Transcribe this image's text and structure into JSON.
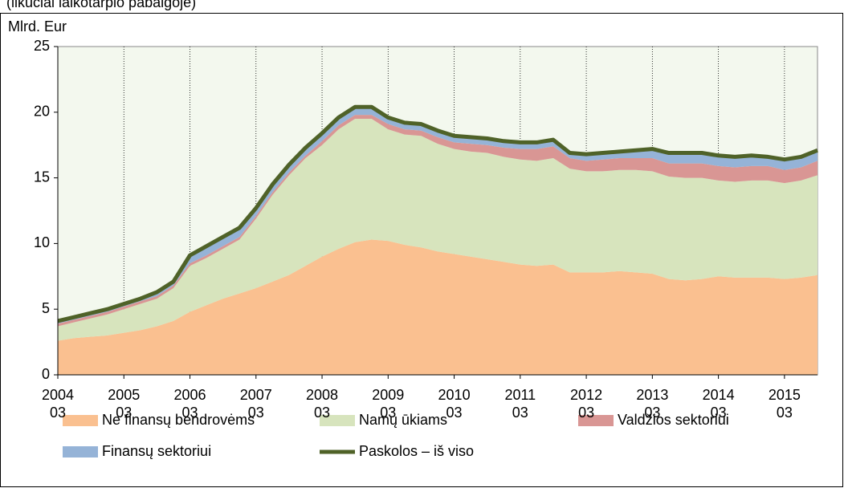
{
  "chart_data": {
    "type": "stacked_area",
    "subtitle": "(likučiai laikotarpio pabaigoje)",
    "ylabel": "Mlrd. Eur",
    "categories": [
      "2004\n03",
      null,
      null,
      null,
      "2005\n03",
      null,
      null,
      null,
      "2006\n03",
      null,
      null,
      null,
      "2007\n03",
      null,
      null,
      null,
      "2008\n03",
      null,
      null,
      null,
      "2009\n03",
      null,
      null,
      null,
      "2010\n03",
      null,
      null,
      null,
      "2011\n03",
      null,
      null,
      null,
      "2012\n03",
      null,
      null,
      null,
      "2013\n03",
      null,
      null,
      null,
      "2014\n03",
      null,
      null,
      null,
      "2015\n03",
      null,
      null
    ],
    "ylim": [
      0,
      25
    ],
    "yticks": [
      0,
      5,
      10,
      15,
      20,
      25
    ],
    "grid": true,
    "series": [
      {
        "name": "Ne finansų bendrovėms",
        "color": "#fac090",
        "values": [
          2.6,
          2.8,
          2.9,
          3.0,
          3.2,
          3.4,
          3.7,
          4.1,
          4.8,
          5.3,
          5.8,
          6.2,
          6.6,
          7.1,
          7.6,
          8.3,
          9.0,
          9.6,
          10.1,
          10.3,
          10.2,
          9.9,
          9.7,
          9.4,
          9.2,
          9.0,
          8.8,
          8.6,
          8.4,
          8.3,
          8.4,
          7.8,
          7.8,
          7.8,
          7.9,
          7.8,
          7.7,
          7.3,
          7.2,
          7.3,
          7.5,
          7.4,
          7.4,
          7.4,
          7.3,
          7.4,
          7.6
        ]
      },
      {
        "name": "Namų ūkiams",
        "color": "#d7e4bd",
        "values": [
          1.1,
          1.2,
          1.4,
          1.6,
          1.8,
          2.0,
          2.1,
          2.5,
          3.5,
          3.6,
          3.8,
          4.1,
          5.3,
          6.6,
          7.6,
          8.2,
          8.5,
          9.1,
          9.4,
          9.2,
          8.5,
          8.4,
          8.5,
          8.2,
          8.0,
          8.0,
          8.1,
          8.0,
          8.0,
          8.0,
          8.1,
          7.9,
          7.7,
          7.7,
          7.7,
          7.8,
          7.8,
          7.8,
          7.8,
          7.7,
          7.3,
          7.3,
          7.4,
          7.4,
          7.3,
          7.4,
          7.6
        ]
      },
      {
        "name": "Valdžios sektoriui",
        "color": "#d99694",
        "values": [
          0.2,
          0.2,
          0.2,
          0.2,
          0.2,
          0.2,
          0.2,
          0.2,
          0.2,
          0.2,
          0.2,
          0.2,
          0.2,
          0.2,
          0.2,
          0.2,
          0.3,
          0.3,
          0.3,
          0.3,
          0.4,
          0.4,
          0.4,
          0.5,
          0.5,
          0.6,
          0.6,
          0.7,
          0.8,
          0.9,
          0.9,
          0.8,
          0.8,
          0.9,
          0.9,
          0.9,
          1.0,
          1.0,
          1.1,
          1.1,
          1.1,
          1.1,
          1.1,
          1.1,
          1.0,
          1.0,
          1.1
        ]
      },
      {
        "name": "Finansų sektoriui",
        "color": "#95b3d7",
        "values": [
          0.2,
          0.2,
          0.2,
          0.2,
          0.2,
          0.2,
          0.3,
          0.3,
          0.6,
          0.7,
          0.7,
          0.7,
          0.6,
          0.6,
          0.6,
          0.6,
          0.6,
          0.6,
          0.6,
          0.6,
          0.5,
          0.5,
          0.5,
          0.5,
          0.5,
          0.5,
          0.5,
          0.5,
          0.5,
          0.5,
          0.5,
          0.4,
          0.5,
          0.5,
          0.5,
          0.6,
          0.7,
          0.8,
          0.8,
          0.8,
          0.8,
          0.8,
          0.8,
          0.7,
          0.8,
          0.8,
          0.8
        ]
      },
      {
        "name": "Paskolos – iš viso",
        "color": "#4f6228",
        "kind": "line",
        "values": [
          4.1,
          4.4,
          4.7,
          5.0,
          5.4,
          5.8,
          6.3,
          7.1,
          9.1,
          9.8,
          10.5,
          11.2,
          12.7,
          14.5,
          16.0,
          17.3,
          18.4,
          19.6,
          20.4,
          20.4,
          19.6,
          19.2,
          19.1,
          18.6,
          18.2,
          18.1,
          18.0,
          17.8,
          17.7,
          17.7,
          17.9,
          16.9,
          16.8,
          16.9,
          17.0,
          17.1,
          17.2,
          16.9,
          16.9,
          16.9,
          16.7,
          16.6,
          16.7,
          16.6,
          16.4,
          16.6,
          17.1
        ]
      }
    ]
  }
}
